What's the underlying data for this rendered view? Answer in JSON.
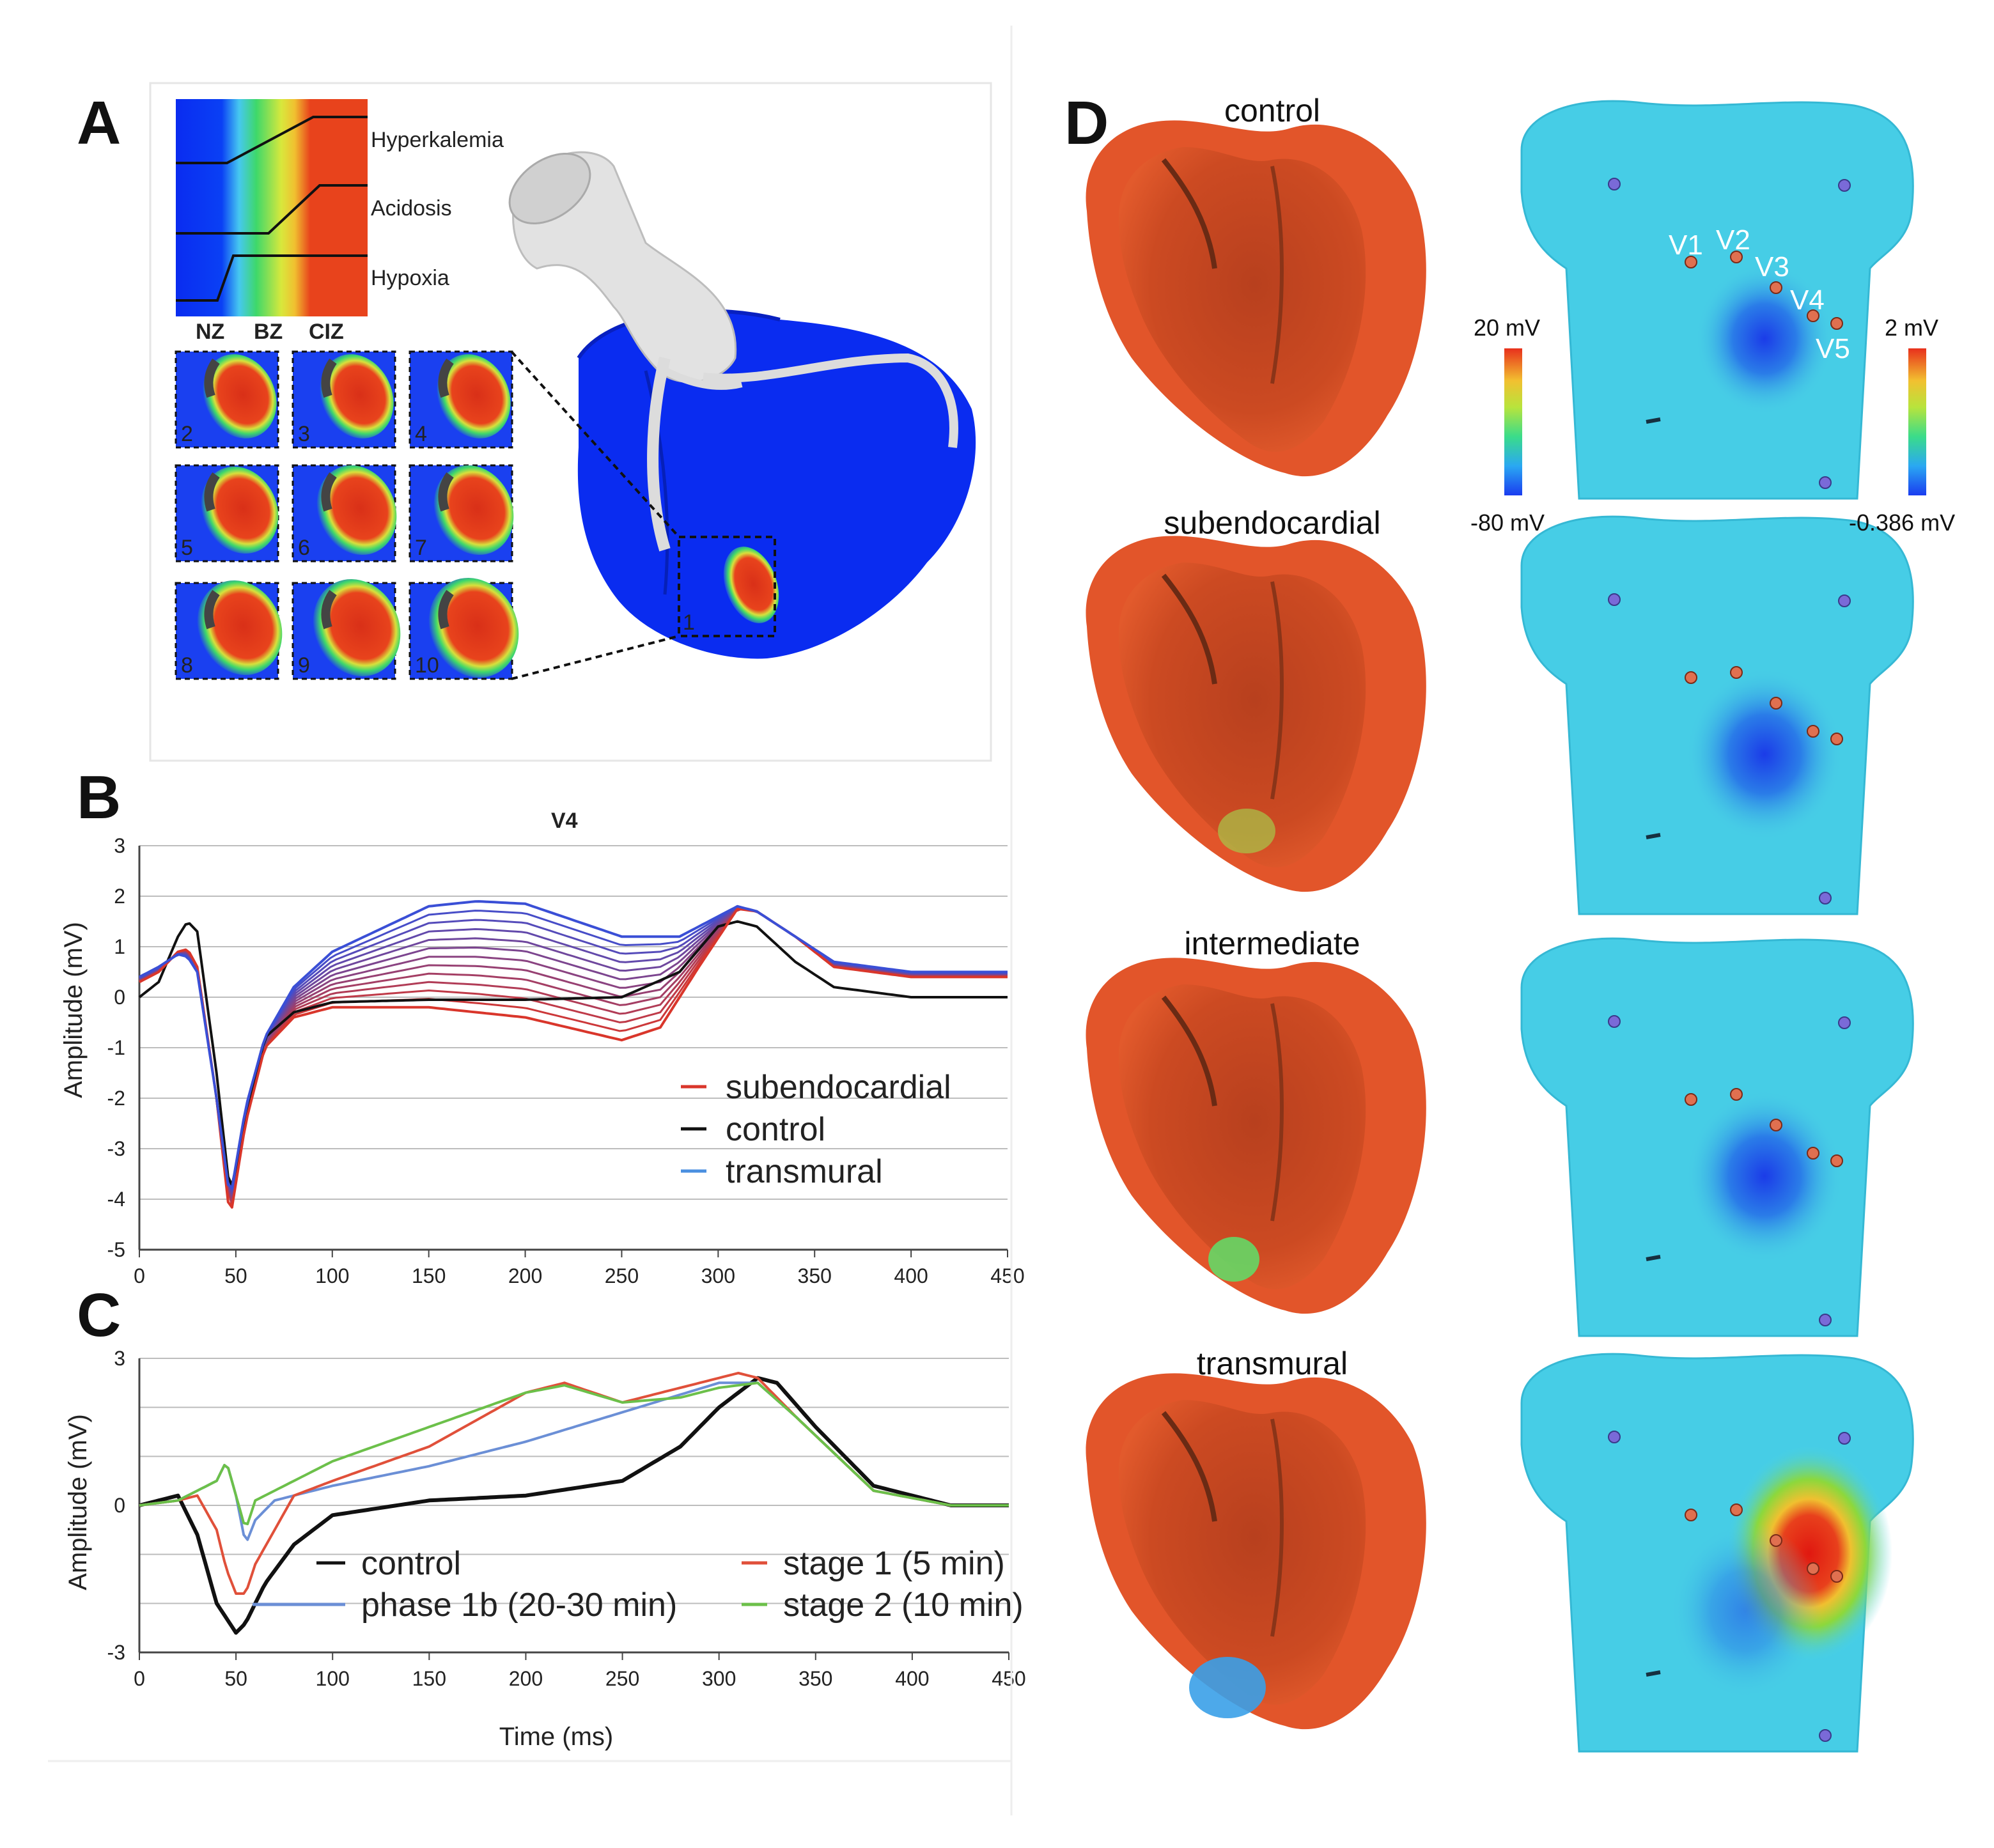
{
  "panels": {
    "A": "A",
    "B": "B",
    "C": "C",
    "D": "D"
  },
  "panelA": {
    "gradient_labels": [
      "Hyperkalemia",
      "Acidosis",
      "Hypoxia"
    ],
    "zones": [
      "NZ",
      "BZ",
      "CIZ"
    ],
    "slice_numbers": [
      "2",
      "3",
      "4",
      "5",
      "6",
      "7",
      "8",
      "9",
      "10"
    ],
    "main_slice_number": "1",
    "colors": {
      "blue": "#0a2cf0",
      "red": "#e8431c"
    }
  },
  "panelB": {
    "title": "V4",
    "ylabel": "Amplitude (mV)",
    "yticks": [
      "3",
      "2",
      "1",
      "0",
      "-1",
      "-2",
      "-3",
      "-4",
      "-5"
    ],
    "xticks": [
      "0",
      "50",
      "100",
      "150",
      "200",
      "250",
      "300",
      "350",
      "400",
      "450"
    ],
    "legend": [
      "subendocardial",
      "control",
      "transmural"
    ],
    "legend_colors": [
      "#d9362b",
      "#111111",
      "#4a8fe0"
    ]
  },
  "panelC": {
    "ylabel": "Amplitude (mV)",
    "xlabel": "Time (ms)",
    "yticks": [
      "3",
      "0",
      "-3"
    ],
    "xticks": [
      "0",
      "50",
      "100",
      "150",
      "200",
      "250",
      "300",
      "350",
      "400",
      "450"
    ],
    "legend": [
      "control",
      "phase 1b (20-30 min)",
      "stage 1 (5 min)",
      "stage 2 (10 min)"
    ],
    "legend_colors": [
      "#111111",
      "#6b8fd6",
      "#e0503a",
      "#6cc04a"
    ]
  },
  "panelD": {
    "conditions": [
      "control",
      "subendocardial",
      "intermediate",
      "transmural"
    ],
    "leads": [
      "V1",
      "V2",
      "V3",
      "V4",
      "V5"
    ],
    "heart_colorbar": {
      "max": "20 mV",
      "min": "-80 mV"
    },
    "torso_colorbar": {
      "max": "2 mV",
      "min": "-0.386 mV"
    }
  },
  "chart_data": [
    {
      "type": "line",
      "title": "V4",
      "xlabel": "",
      "ylabel": "Amplitude (mV)",
      "xlim": [
        0,
        450
      ],
      "ylim": [
        -5,
        3
      ],
      "series": [
        {
          "name": "control",
          "x": [
            0,
            10,
            20,
            25,
            30,
            40,
            47,
            55,
            65,
            80,
            100,
            150,
            200,
            250,
            280,
            300,
            310,
            320,
            340,
            360,
            400,
            450
          ],
          "values": [
            0,
            0.3,
            1.2,
            1.5,
            1.3,
            -1.5,
            -3.9,
            -2.5,
            -0.8,
            -0.3,
            -0.1,
            -0.05,
            -0.05,
            0,
            0.5,
            1.4,
            1.5,
            1.4,
            0.7,
            0.2,
            0,
            0
          ]
        },
        {
          "name": "subendocardial",
          "x": [
            0,
            10,
            20,
            25,
            30,
            40,
            47,
            55,
            65,
            80,
            100,
            150,
            200,
            250,
            270,
            290,
            310,
            320,
            340,
            360,
            400,
            450
          ],
          "values": [
            0.3,
            0.5,
            0.9,
            0.95,
            0.6,
            -2,
            -4.4,
            -2.5,
            -1.0,
            -0.4,
            -0.2,
            -0.2,
            -0.4,
            -0.85,
            -0.6,
            0.6,
            1.75,
            1.7,
            1.2,
            0.6,
            0.4,
            0.4
          ]
        },
        {
          "name": "transmural",
          "x": [
            0,
            10,
            20,
            25,
            30,
            40,
            47,
            55,
            65,
            80,
            100,
            150,
            175,
            200,
            250,
            280,
            300,
            310,
            320,
            340,
            360,
            400,
            450
          ],
          "values": [
            0.4,
            0.6,
            0.85,
            0.8,
            0.5,
            -2,
            -4.0,
            -2.2,
            -0.8,
            0.2,
            0.9,
            1.8,
            1.9,
            1.85,
            1.2,
            1.2,
            1.6,
            1.8,
            1.7,
            1.2,
            0.7,
            0.5,
            0.5
          ]
        }
      ]
    },
    {
      "type": "line",
      "title": "",
      "xlabel": "Time (ms)",
      "ylabel": "Amplitude (mV)",
      "xlim": [
        0,
        450
      ],
      "ylim": [
        -3,
        3
      ],
      "series": [
        {
          "name": "control",
          "x": [
            0,
            10,
            20,
            30,
            40,
            50,
            55,
            65,
            80,
            100,
            150,
            200,
            250,
            280,
            300,
            320,
            330,
            350,
            380,
            420,
            450
          ],
          "values": [
            0,
            0.1,
            0.2,
            -0.6,
            -2,
            -2.6,
            -2.4,
            -1.6,
            -0.8,
            -0.2,
            0.1,
            0.2,
            0.5,
            1.2,
            2.0,
            2.6,
            2.5,
            1.6,
            0.4,
            0,
            0
          ]
        },
        {
          "name": "phase 1b (20-30 min)",
          "x": [
            0,
            20,
            30,
            40,
            45,
            50,
            55,
            60,
            70,
            100,
            150,
            200,
            250,
            300,
            320,
            340,
            380,
            420,
            450
          ],
          "values": [
            0,
            0.1,
            0.3,
            0.5,
            0.9,
            0.2,
            -0.8,
            -0.3,
            0.1,
            0.4,
            0.8,
            1.3,
            1.9,
            2.5,
            2.5,
            1.8,
            0.3,
            0,
            0
          ]
        },
        {
          "name": "stage 1 (5 min)",
          "x": [
            0,
            20,
            30,
            40,
            45,
            50,
            55,
            60,
            80,
            100,
            150,
            200,
            220,
            250,
            280,
            310,
            320,
            340,
            380,
            420,
            450
          ],
          "values": [
            0,
            0.1,
            0.2,
            -0.5,
            -1.3,
            -1.8,
            -1.8,
            -1.2,
            0.2,
            0.5,
            1.2,
            2.3,
            2.5,
            2.1,
            2.4,
            2.7,
            2.6,
            1.8,
            0.3,
            0,
            0
          ]
        },
        {
          "name": "stage 2 (10 min)",
          "x": [
            0,
            20,
            30,
            40,
            45,
            50,
            55,
            60,
            80,
            100,
            150,
            200,
            220,
            250,
            280,
            300,
            320,
            340,
            380,
            420,
            450
          ],
          "values": [
            0,
            0.1,
            0.3,
            0.5,
            0.9,
            0.2,
            -0.5,
            0.1,
            0.5,
            0.9,
            1.6,
            2.3,
            2.45,
            2.1,
            2.2,
            2.4,
            2.5,
            1.8,
            0.3,
            0,
            0
          ]
        }
      ]
    }
  ]
}
